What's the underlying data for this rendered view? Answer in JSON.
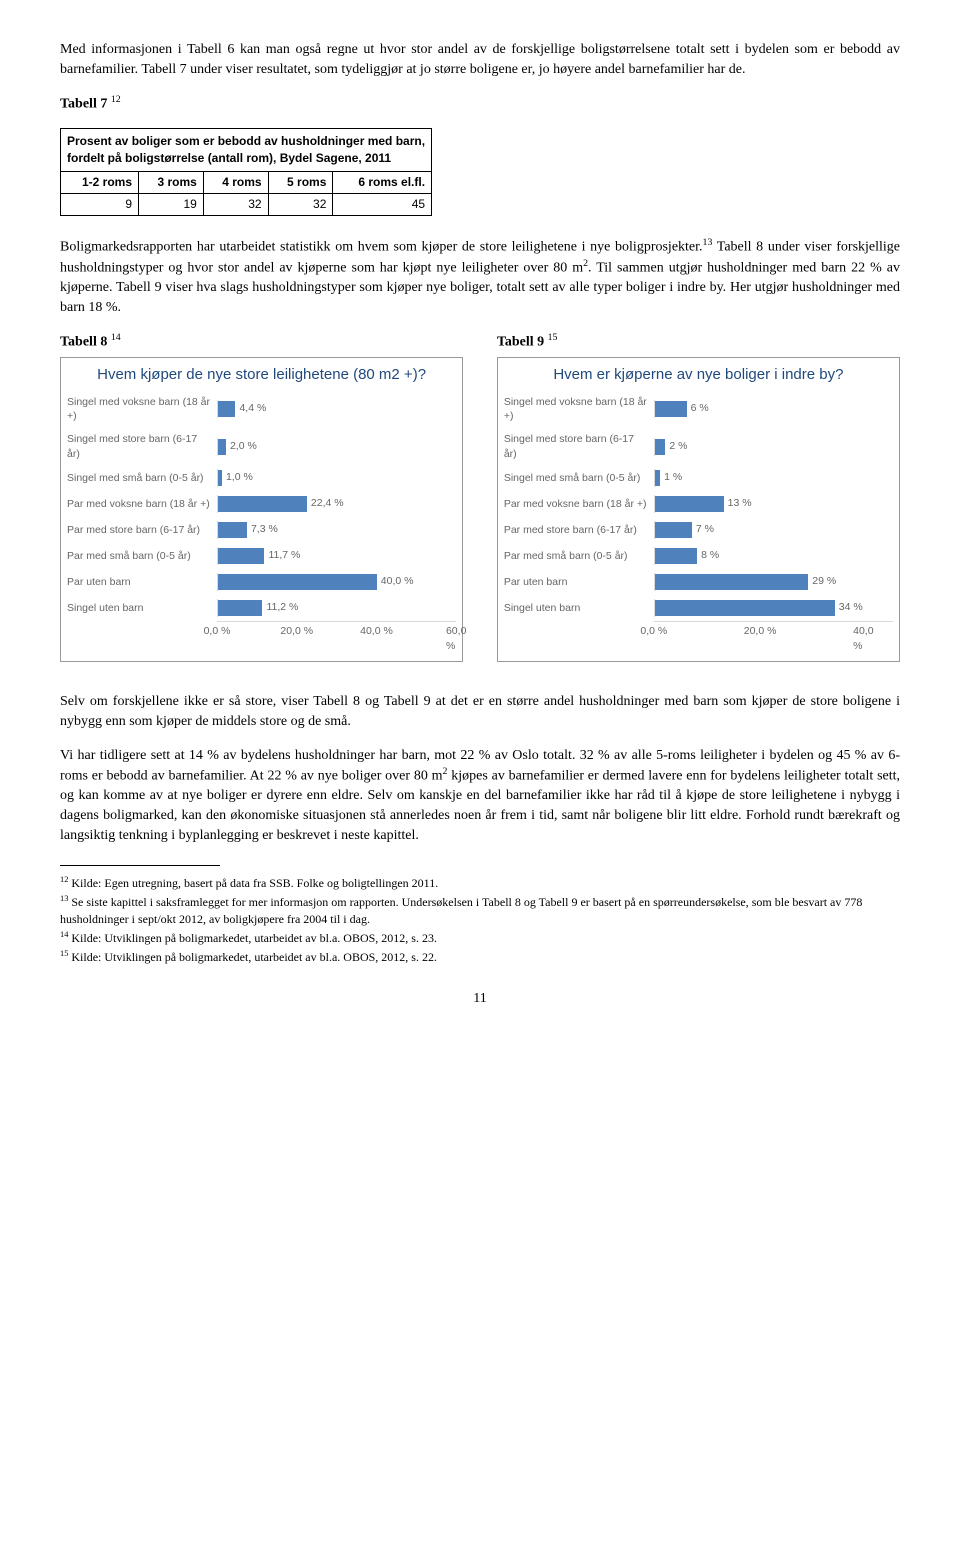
{
  "para1": "Med informasjonen i Tabell 6 kan man også regne ut hvor stor andel av de forskjellige boligstørrelsene totalt sett i bydelen som er bebodd av barnefamilier. Tabell 7 under viser resultatet, som tydeliggjør at jo større boligene er, jo høyere andel barnefamilier har de.",
  "table7": {
    "label": "Tabell 7",
    "label_sup": "12",
    "caption_l1": "Prosent av boliger som er bebodd av husholdninger med barn,",
    "caption_l2": "fordelt på boligstørrelse (antall rom), Bydel Sagene, 2011",
    "headers": [
      "1-2 roms",
      "3 roms",
      "4 roms",
      "5 roms",
      "6 roms el.fl."
    ],
    "values": [
      "9",
      "19",
      "32",
      "32",
      "45"
    ]
  },
  "para2": "Boligmarkedsrapporten har utarbeidet statistikk om hvem som kjøper de store leilighetene i nye boligprosjekter.<span class=\"sup\">13</span> Tabell 8 under viser forskjellige husholdningstyper og hvor stor andel av kjøperne som har kjøpt nye leiligheter over 80 m<span class=\"sup\">2</span>. Til sammen utgjør husholdninger med barn 22 % av kjøperne. Tabell 9 viser hva slags husholdningstyper som kjøper nye boliger, totalt sett av alle typer boliger i indre by. Her utgjør husholdninger med barn 18 %.",
  "chart_categories": [
    "Singel med voksne barn (18 år +)",
    "Singel med store barn (6-17 år)",
    "Singel med små barn (0-5 år)",
    "Par med voksne barn (18 år +)",
    "Par med store barn (6-17 år)",
    "Par med små barn (0-5 år)",
    "Par uten barn",
    "Singel uten barn"
  ],
  "chart8": {
    "label": "Tabell 8",
    "label_sup": "14",
    "title": "Hvem kjøper de nye store leilighetene (80 m2 +)?",
    "values": [
      4.4,
      2.0,
      1.0,
      22.4,
      7.3,
      11.7,
      40.0,
      11.2
    ],
    "value_labels": [
      "4,4 %",
      "2,0 %",
      "1,0 %",
      "22,4 %",
      "7,3 %",
      "11,7 %",
      "40,0 %",
      "11,2 %"
    ],
    "ticks": [
      0,
      20,
      40,
      60
    ],
    "tick_labels": [
      "0,0 %",
      "20,0 %",
      "40,0 %",
      "60,0 %"
    ],
    "xmax": 60,
    "bar_color": "#4f81bd"
  },
  "chart9": {
    "label": "Tabell 9",
    "label_sup": "15",
    "title": "Hvem er kjøperne av nye boliger i indre by?",
    "values": [
      6,
      2,
      1,
      13,
      7,
      8,
      29,
      34
    ],
    "value_labels": [
      "6 %",
      "2 %",
      "1 %",
      "13 %",
      "7 %",
      "8 %",
      "29 %",
      "34 %"
    ],
    "ticks": [
      0,
      20,
      40
    ],
    "tick_labels": [
      "0,0 %",
      "20,0 %",
      "40,0 %"
    ],
    "xmax": 45,
    "bar_color": "#4f81bd"
  },
  "para3": "Selv om forskjellene ikke er så store, viser Tabell 8 og Tabell 9 at det er en større andel husholdninger med barn som kjøper de store boligene i nybygg enn som kjøper de middels store og de små.",
  "para4": "Vi har tidligere sett at 14 % av bydelens husholdninger har barn, mot 22 % av Oslo totalt. 32 % av alle 5-roms leiligheter i bydelen og 45 % av 6-roms er bebodd av barnefamilier. At 22 % av nye boliger over 80 m<span class=\"sup\">2</span> kjøpes av barnefamilier er dermed lavere enn for bydelens leiligheter totalt sett, og kan komme av at nye boliger er dyrere enn eldre. Selv om kanskje en del barnefamilier ikke har råd til å kjøpe de store leilighetene i nybygg i dagens boligmarked, kan den økonomiske situasjonen stå annerledes noen år frem i tid, samt når boligene blir litt eldre. Forhold rundt bærekraft og langsiktig tenkning i byplanlegging er beskrevet i neste kapittel.",
  "footnotes": {
    "f12": "Kilde: Egen utregning, basert på data fra SSB. Folke og boligtellingen 2011.",
    "f13": "Se siste kapittel i saksframlegget for mer informasjon om rapporten. Undersøkelsen i Tabell 8 og Tabell 9 er basert på en spørreundersøkelse, som ble besvart av 778 husholdninger i sept/okt 2012, av boligkjøpere fra 2004 til i dag.",
    "f14": "Kilde: Utviklingen på boligmarkedet, utarbeidet av bl.a. OBOS, 2012, s. 23.",
    "f15": "Kilde: Utviklingen på boligmarkedet, utarbeidet av bl.a. OBOS, 2012, s. 22."
  },
  "page_number": "11"
}
